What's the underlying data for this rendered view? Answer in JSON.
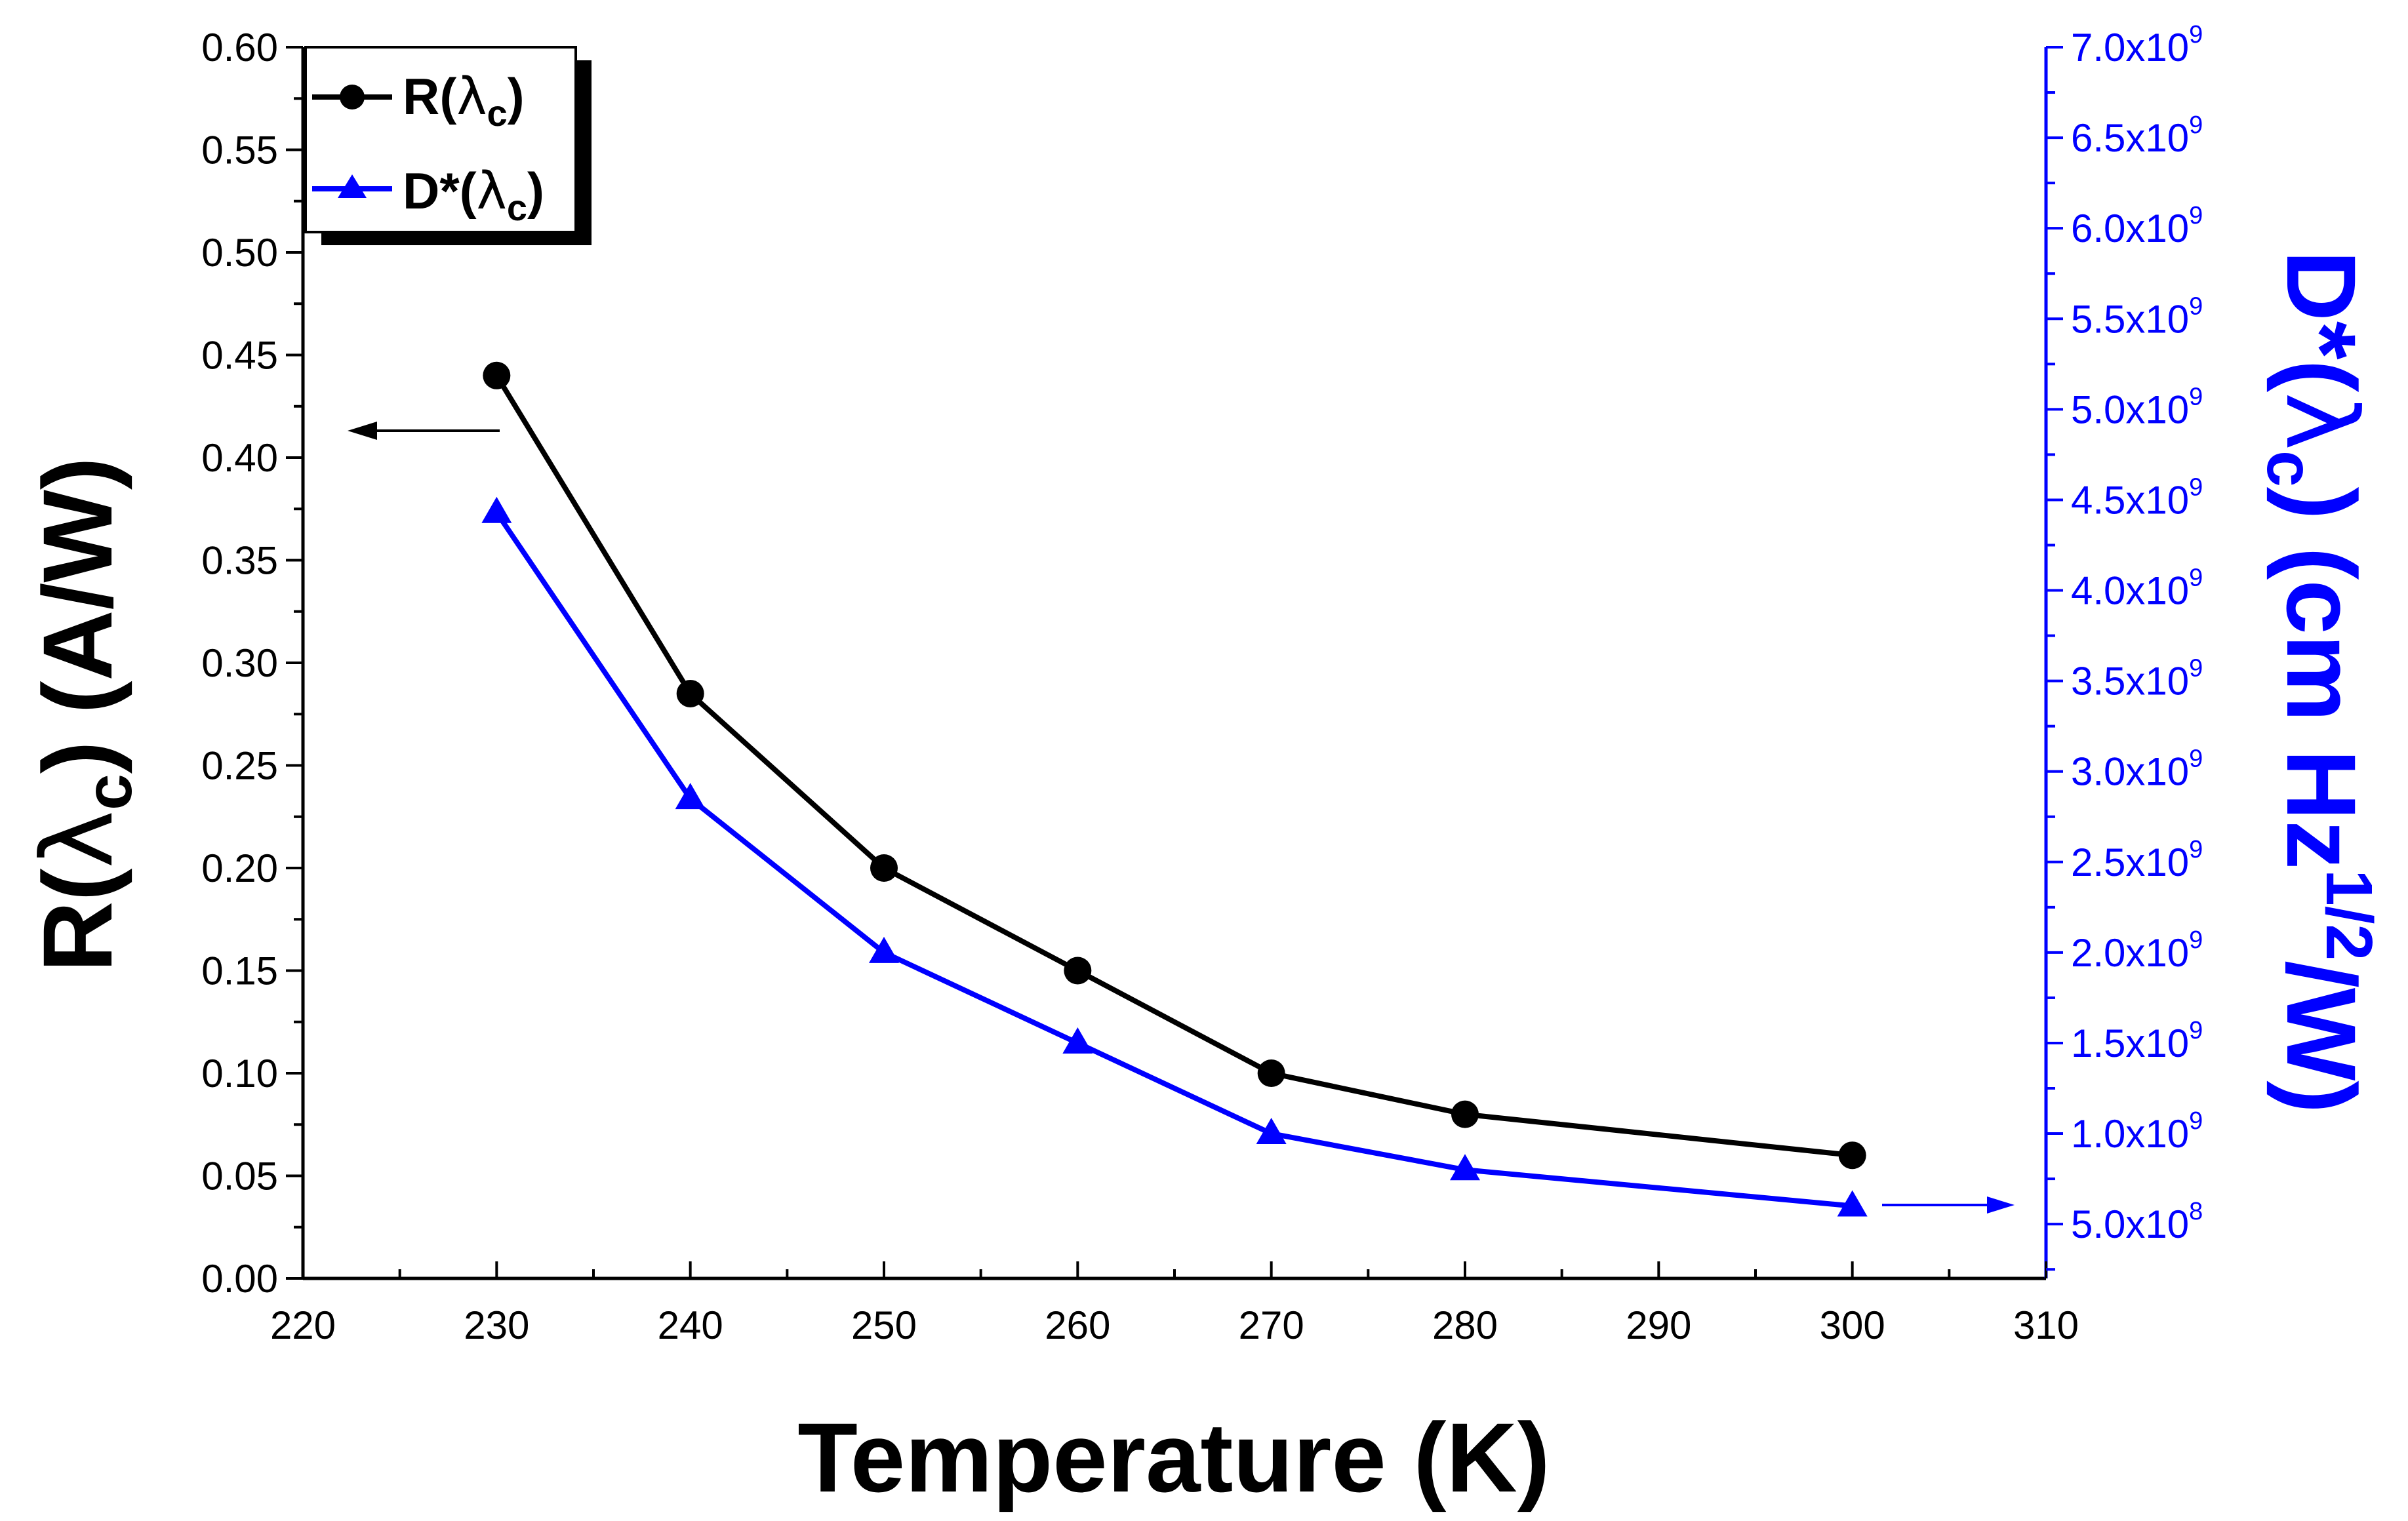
{
  "chart_data": {
    "type": "line",
    "xlabel": "Temperature (K)",
    "xlim": [
      220,
      310
    ],
    "xticks": [
      220,
      230,
      240,
      250,
      260,
      270,
      280,
      290,
      300,
      310
    ],
    "x": [
      230,
      240,
      250,
      260,
      270,
      280,
      300
    ],
    "left_axis": {
      "label_prefix": "R(",
      "label_lambda": "λ",
      "label_sub": "c",
      "label_suffix": ") (A/W)",
      "ylim": [
        0,
        0.6
      ],
      "ticks": [
        "0.00",
        "0.05",
        "0.10",
        "0.15",
        "0.20",
        "0.25",
        "0.30",
        "0.35",
        "0.40",
        "0.45",
        "0.50",
        "0.55",
        "0.60"
      ],
      "color": "#000000"
    },
    "right_axis": {
      "label_prefix": "D*(",
      "label_lambda": "λ",
      "label_sub": "c",
      "label_mid": ") (cm Hz",
      "label_sup": "1/2",
      "label_suffix": "/W)",
      "ylim": [
        200000000.0,
        7000000000.0
      ],
      "ticks": [
        {
          "value": 500000000.0,
          "mant": "5.0x10",
          "exp": "8"
        },
        {
          "value": 1000000000.0,
          "mant": "1.0x10",
          "exp": "9"
        },
        {
          "value": 1500000000.0,
          "mant": "1.5x10",
          "exp": "9"
        },
        {
          "value": 2000000000.0,
          "mant": "2.0x10",
          "exp": "9"
        },
        {
          "value": 2500000000.0,
          "mant": "2.5x10",
          "exp": "9"
        },
        {
          "value": 3000000000.0,
          "mant": "3.0x10",
          "exp": "9"
        },
        {
          "value": 3500000000.0,
          "mant": "3.5x10",
          "exp": "9"
        },
        {
          "value": 4000000000.0,
          "mant": "4.0x10",
          "exp": "9"
        },
        {
          "value": 4500000000.0,
          "mant": "4.5x10",
          "exp": "9"
        },
        {
          "value": 5000000000.0,
          "mant": "5.0x10",
          "exp": "9"
        },
        {
          "value": 5500000000.0,
          "mant": "5.5x10",
          "exp": "9"
        },
        {
          "value": 6000000000.0,
          "mant": "6.0x10",
          "exp": "9"
        },
        {
          "value": 6500000000.0,
          "mant": "6.5x10",
          "exp": "9"
        },
        {
          "value": 7000000000.0,
          "mant": "7.0x10",
          "exp": "9"
        }
      ],
      "color": "#0000ff"
    },
    "series": [
      {
        "name": "R(λc)",
        "legend_main": "R(",
        "legend_lambda": "λ",
        "legend_sub": "c",
        "legend_close": ")",
        "axis": "left",
        "marker": "circle",
        "color": "#000000",
        "values": [
          0.44,
          0.285,
          0.2,
          0.15,
          0.1,
          0.08,
          0.06
        ]
      },
      {
        "name": "D*(λc)",
        "legend_main": "D*(",
        "legend_lambda": "λ",
        "legend_sub": "c",
        "legend_close": ")",
        "axis": "right",
        "marker": "triangle",
        "color": "#0000ff",
        "values": [
          4430000000.0,
          2850000000.0,
          2000000000.0,
          1500000000.0,
          1000000000.0,
          800000000.0,
          600000000.0
        ]
      }
    ],
    "annotations": [
      {
        "type": "arrow",
        "points_to": "left axis",
        "color": "#000000"
      },
      {
        "type": "arrow",
        "points_to": "right axis",
        "color": "#0000ff"
      }
    ]
  }
}
